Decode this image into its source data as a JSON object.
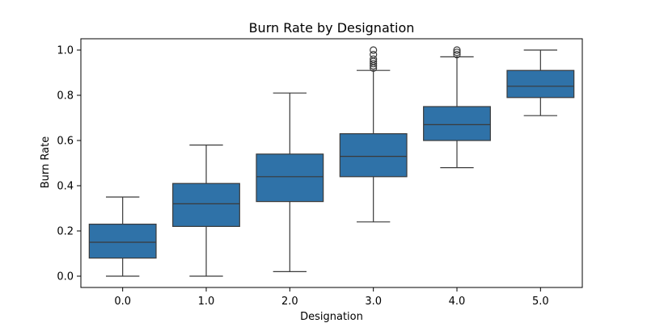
{
  "chart_data": {
    "type": "box",
    "title": "Burn Rate by Designation",
    "xlabel": "Designation",
    "ylabel": "Burn Rate",
    "ylim": [
      -0.05,
      1.05
    ],
    "yticks": [
      "0.0",
      "0.2",
      "0.4",
      "0.6",
      "0.8",
      "1.0"
    ],
    "ytick_values": [
      0.0,
      0.2,
      0.4,
      0.6,
      0.8,
      1.0
    ],
    "grid": false,
    "legend": "none",
    "box_color": "#2f72a8",
    "line_color": "#3a3a3a",
    "categories": [
      "0.0",
      "1.0",
      "2.0",
      "3.0",
      "4.0",
      "5.0"
    ],
    "boxes": [
      {
        "category": "0.0",
        "whisker_low": 0.0,
        "q1": 0.08,
        "median": 0.15,
        "q3": 0.23,
        "whisker_high": 0.35,
        "outliers": []
      },
      {
        "category": "1.0",
        "whisker_low": 0.0,
        "q1": 0.22,
        "median": 0.32,
        "q3": 0.41,
        "whisker_high": 0.58,
        "outliers": []
      },
      {
        "category": "2.0",
        "whisker_low": 0.02,
        "q1": 0.33,
        "median": 0.44,
        "q3": 0.54,
        "whisker_high": 0.81,
        "outliers": []
      },
      {
        "category": "3.0",
        "whisker_low": 0.24,
        "q1": 0.44,
        "median": 0.53,
        "q3": 0.63,
        "whisker_high": 0.91,
        "outliers": [
          0.92,
          0.93,
          0.94,
          0.95,
          0.96,
          0.98,
          1.0
        ]
      },
      {
        "category": "4.0",
        "whisker_low": 0.48,
        "q1": 0.6,
        "median": 0.67,
        "q3": 0.75,
        "whisker_high": 0.97,
        "outliers": [
          0.98,
          0.99,
          1.0
        ]
      },
      {
        "category": "5.0",
        "whisker_low": 0.71,
        "q1": 0.79,
        "median": 0.84,
        "q3": 0.91,
        "whisker_high": 1.0,
        "outliers": []
      }
    ]
  }
}
